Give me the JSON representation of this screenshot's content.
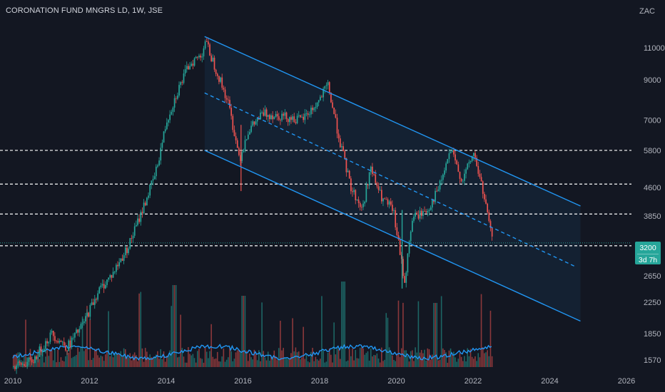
{
  "header": {
    "title": "CORONATION FUND MNGRS LD, 1W, JSE",
    "unit": "ZAC"
  },
  "price_badge": {
    "price": "3200",
    "countdown": "3d 7h",
    "color": "#26a69a"
  },
  "colors": {
    "background": "#131722",
    "up": "#26a69a",
    "down": "#ef5350",
    "channel_line": "#2196f3",
    "volume_ma": "#2196f3",
    "axis_text": "#b2b5be",
    "level_line": "#ffffff"
  },
  "chart_data": {
    "type": "candlestick",
    "title": "CORONATION FUND MNGRS LD, 1W, JSE",
    "y_scale": "log",
    "y_unit": "ZAC",
    "x_ticks": [
      "2010",
      "2012",
      "2014",
      "2016",
      "2018",
      "2020",
      "2022",
      "2024",
      "2026"
    ],
    "y_ticks": [
      11000,
      9000,
      7000,
      5800,
      4600,
      3850,
      3200,
      2650,
      2250,
      1850,
      1570
    ],
    "last_price": 3200,
    "price_path": [
      {
        "x": 2010.0,
        "y": 1500
      },
      {
        "x": 2010.5,
        "y": 1560
      },
      {
        "x": 2011.0,
        "y": 1850
      },
      {
        "x": 2011.4,
        "y": 1700
      },
      {
        "x": 2011.8,
        "y": 1950
      },
      {
        "x": 2012.2,
        "y": 2400
      },
      {
        "x": 2012.6,
        "y": 2700
      },
      {
        "x": 2013.0,
        "y": 3200
      },
      {
        "x": 2013.3,
        "y": 3850
      },
      {
        "x": 2013.7,
        "y": 5000
      },
      {
        "x": 2014.0,
        "y": 7000
      },
      {
        "x": 2014.3,
        "y": 8500
      },
      {
        "x": 2014.6,
        "y": 10000
      },
      {
        "x": 2014.9,
        "y": 10500
      },
      {
        "x": 2015.0,
        "y": 11500
      },
      {
        "x": 2015.3,
        "y": 9500
      },
      {
        "x": 2015.6,
        "y": 7800
      },
      {
        "x": 2015.9,
        "y": 5500
      },
      {
        "x": 2016.1,
        "y": 6500
      },
      {
        "x": 2016.5,
        "y": 7300
      },
      {
        "x": 2017.0,
        "y": 7200
      },
      {
        "x": 2017.5,
        "y": 7000
      },
      {
        "x": 2017.9,
        "y": 7700
      },
      {
        "x": 2018.2,
        "y": 8700
      },
      {
        "x": 2018.5,
        "y": 6200
      },
      {
        "x": 2018.8,
        "y": 4600
      },
      {
        "x": 2019.1,
        "y": 4000
      },
      {
        "x": 2019.3,
        "y": 5200
      },
      {
        "x": 2019.6,
        "y": 4300
      },
      {
        "x": 2019.9,
        "y": 4000
      },
      {
        "x": 2020.2,
        "y": 2550
      },
      {
        "x": 2020.4,
        "y": 3800
      },
      {
        "x": 2020.8,
        "y": 4000
      },
      {
        "x": 2021.1,
        "y": 4600
      },
      {
        "x": 2021.4,
        "y": 5800
      },
      {
        "x": 2021.7,
        "y": 4800
      },
      {
        "x": 2022.0,
        "y": 5700
      },
      {
        "x": 2022.2,
        "y": 4700
      },
      {
        "x": 2022.4,
        "y": 3700
      },
      {
        "x": 2022.5,
        "y": 3200
      }
    ],
    "horizontal_levels": [
      5800,
      4700,
      3900,
      3200
    ],
    "channel": {
      "upper": [
        {
          "x": 2015.0,
          "y": 11800
        },
        {
          "x": 2024.8,
          "y": 4100
        }
      ],
      "middle": [
        {
          "x": 2015.0,
          "y": 8300
        },
        {
          "x": 2024.7,
          "y": 2800
        }
      ],
      "lower": [
        {
          "x": 2015.0,
          "y": 5800
        },
        {
          "x": 2024.8,
          "y": 2000
        }
      ]
    },
    "grid": false
  }
}
